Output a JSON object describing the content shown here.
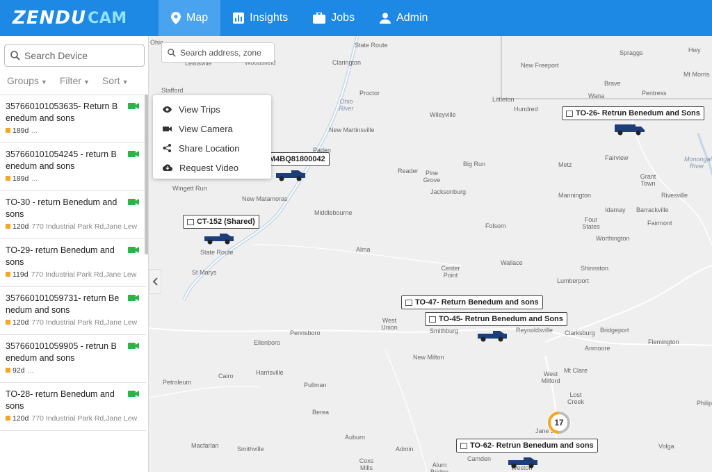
{
  "brand": {
    "main": "ZENDU",
    "sub": "CAM"
  },
  "nav": [
    {
      "label": "Map",
      "icon": "map-pin-icon",
      "active": true
    },
    {
      "label": "Insights",
      "icon": "chart-icon",
      "active": false
    },
    {
      "label": "Jobs",
      "icon": "briefcase-icon",
      "active": false
    },
    {
      "label": "Admin",
      "icon": "person-icon",
      "active": false
    }
  ],
  "sidebar": {
    "search_placeholder": "Search Device",
    "filters": [
      "Groups",
      "Filter",
      "Sort"
    ],
    "devices": [
      {
        "name": "357660101053635- Return Benedum and sons",
        "days": "189d",
        "address": "..."
      },
      {
        "name": "357660101054245 - return Benedum and sons",
        "days": "189d",
        "address": "..."
      },
      {
        "name": "TO-30 - return Benedum and sons",
        "days": "120d",
        "address": "770 Industrial Park Rd,Jane Lew"
      },
      {
        "name": "TO-29- return Benedum and sons",
        "days": "119d",
        "address": "770 Industrial Park Rd,Jane Lew"
      },
      {
        "name": "357660101059731- return Benedum and sons",
        "days": "120d",
        "address": "770 Industrial Park Rd,Jane Lew"
      },
      {
        "name": "357660101059905 - retrun Benedum and sons",
        "days": "92d",
        "address": "..."
      },
      {
        "name": "TO-28- return Benedum and sons",
        "days": "120d",
        "address": "770 Industrial Park Rd,Jane Lew"
      }
    ]
  },
  "map": {
    "search_placeholder": "Search address, zone",
    "context_menu": [
      "View Trips",
      "View Camera",
      "Share Location",
      "Request Video"
    ],
    "vehicle_labels": {
      "to26": "TO-26- Retrun Benedum and Sons",
      "partial": "M4BQ81800042",
      "ct152": "CT-152 (Shared)",
      "to47": "TO-47- Return Benedum and sons",
      "to45": "TO-45- Retrun Benedum and Sons",
      "to62": "TO-62- Retrun Benedum and sons"
    },
    "cluster_count": "17",
    "towns": {
      "t1": "Clarington",
      "t2": "Spraggs",
      "t3": "New Freeport",
      "t4": "Mt Morris",
      "t5": "Brave",
      "t6": "Wana",
      "t7": "Pentress",
      "t8": "Proctor",
      "t9": "Stafford",
      "t10": "Littleton",
      "t11": "Hundred",
      "t12": "Wileyville",
      "t13": "Ohio River",
      "t14": "New Martinsville",
      "t15": "Reader",
      "t16": "Pine Grove",
      "t17": "Big Run",
      "t18": "Metz",
      "t19": "Fairview",
      "t20": "Grant Town",
      "t21": "Wingett Run",
      "t22": "New Matamoras",
      "t23": "Jacksonburg",
      "t24": "Mannington",
      "t25": "Rivesville",
      "t26": "Idamay",
      "t27": "Barrackville",
      "t28": "Middlebourne",
      "t29": "Folsom",
      "t30": "Four States",
      "t31": "Fairmont",
      "t32": "Worthington",
      "t33": "St Marys",
      "t34": "Alma",
      "t35": "Wallace",
      "t36": "Center Point",
      "t37": "Shinnston",
      "t38": "Lumberport",
      "t39": "West Union",
      "t40": "Smithburg",
      "t41": "Reynoldsville",
      "t42": "Clarksburg",
      "t43": "Bridgeport",
      "t44": "Pennsboro",
      "t45": "Ellenboro",
      "t46": "Anmoore",
      "t47": "Flemington",
      "t48": "New Milton",
      "t49": "Mt Clare",
      "t50": "West Milford",
      "t51": "Petroleum",
      "t52": "Cairo",
      "t53": "Harrisville",
      "t54": "Pullman",
      "t55": "Lost Creek",
      "t56": "Berea",
      "t57": "Philip",
      "t58": "Auburn",
      "t59": "Jane Lew",
      "t60": "Macfarlan",
      "t61": "Smithville",
      "t62": "Camden",
      "t63": "Volga",
      "t64": "Coxs Mills",
      "t65": "Alum Bridge",
      "t66": "Weston",
      "t67": "Admin",
      "t68": "Lewisville",
      "t69": "Woodsfield",
      "t70": "Monongahela River",
      "t71": "Ohio",
      "t72": "Hwy",
      "t73": "Paden",
      "t74": "State Route",
      "t75": "State Route"
    }
  }
}
